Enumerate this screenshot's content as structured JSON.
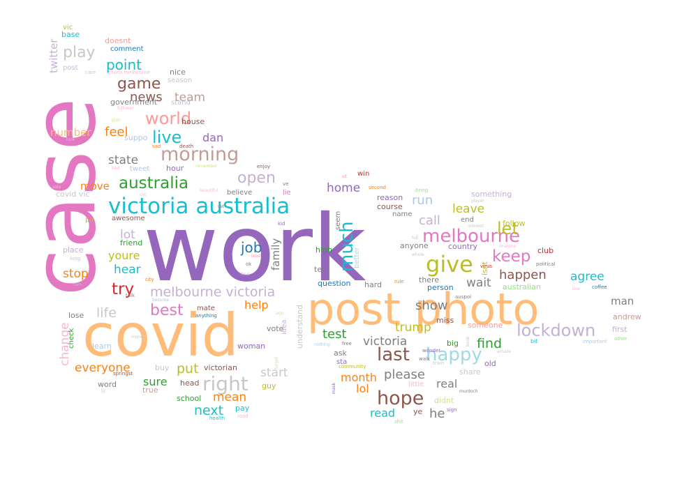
{
  "palette": {
    "pink": "#e377c2",
    "purple": "#9467bd",
    "orange": "#ffbb78",
    "teal": "#17becf",
    "green": "#2ca02c",
    "brown": "#8c564b",
    "tan": "#c49c94",
    "grey": "#7f7f7f",
    "lightgrey": "#c7c7c7",
    "darkorange": "#ff7f0e",
    "red": "#d62728",
    "olive": "#bcbd22",
    "lightpurple": "#c5b0d5",
    "lightpink": "#f7b6d2",
    "lightblue": "#9edae5",
    "salmon": "#ff9896",
    "lightgreen": "#98df8a",
    "blue": "#1f77b4",
    "skyblue": "#aec7e8",
    "lightolive": "#dbdb8d"
  },
  "words": [
    {
      "id": "w-work",
      "text": "work",
      "color": "purple"
    },
    {
      "id": "w-case",
      "text": "case",
      "color": "pink"
    },
    {
      "id": "w-covid",
      "text": "covid",
      "color": "orange"
    },
    {
      "id": "w-post-photo",
      "text": "post photo",
      "color": "orange"
    },
    {
      "id": "w-victoria-australia",
      "text": "victoria australia",
      "color": "teal"
    },
    {
      "id": "w-australia",
      "text": "australia",
      "color": "green"
    },
    {
      "id": "w-morning",
      "text": "morning",
      "color": "tan"
    },
    {
      "id": "w-world",
      "text": "world",
      "color": "salmon"
    },
    {
      "id": "w-live",
      "text": "live",
      "color": "teal"
    },
    {
      "id": "w-game",
      "text": "game",
      "color": "brown"
    },
    {
      "id": "w-play",
      "text": "play",
      "color": "lightgrey"
    },
    {
      "id": "w-point",
      "text": "point",
      "color": "teal"
    },
    {
      "id": "w-news",
      "text": "news",
      "color": "brown"
    },
    {
      "id": "w-team",
      "text": "team",
      "color": "tan"
    },
    {
      "id": "w-feel",
      "text": "feel",
      "color": "darkorange"
    },
    {
      "id": "w-dan",
      "text": "dan",
      "color": "purple"
    },
    {
      "id": "w-number",
      "text": "number",
      "color": "orange"
    },
    {
      "id": "w-state",
      "text": "state",
      "color": "grey"
    },
    {
      "id": "w-open",
      "text": "open",
      "color": "lightpurple"
    },
    {
      "id": "w-melbourne",
      "text": "melbourne",
      "color": "pink"
    },
    {
      "id": "w-let",
      "text": "let",
      "color": "olive"
    },
    {
      "id": "w-give",
      "text": "give",
      "color": "olive"
    },
    {
      "id": "w-keep",
      "text": "keep",
      "color": "pink"
    },
    {
      "id": "w-much",
      "text": "much",
      "color": "teal"
    },
    {
      "id": "w-job",
      "text": "job",
      "color": "blue"
    },
    {
      "id": "w-family",
      "text": "family",
      "color": "grey"
    },
    {
      "id": "w-try",
      "text": "try",
      "color": "red"
    },
    {
      "id": "w-best",
      "text": "best",
      "color": "pink"
    },
    {
      "id": "w-melbourne-victoria",
      "text": "melbourne victoria",
      "color": "lightpurple"
    },
    {
      "id": "w-life",
      "text": "life",
      "color": "lightgrey"
    },
    {
      "id": "w-help",
      "text": "help",
      "color": "darkorange"
    },
    {
      "id": "w-right",
      "text": "right",
      "color": "lightgrey"
    },
    {
      "id": "w-put",
      "text": "put",
      "color": "olive"
    },
    {
      "id": "w-sure",
      "text": "sure",
      "color": "green"
    },
    {
      "id": "w-everyone",
      "text": "everyone",
      "color": "darkorange"
    },
    {
      "id": "w-change",
      "text": "change",
      "color": "lightpink"
    },
    {
      "id": "w-hope",
      "text": "hope",
      "color": "brown"
    },
    {
      "id": "w-last",
      "text": "last",
      "color": "brown"
    },
    {
      "id": "w-happy",
      "text": "happy",
      "color": "lightblue"
    },
    {
      "id": "w-lockdown",
      "text": "lockdown",
      "color": "lightpurple"
    },
    {
      "id": "w-find",
      "text": "find",
      "color": "green"
    },
    {
      "id": "w-show",
      "text": "show",
      "color": "grey"
    },
    {
      "id": "w-trump",
      "text": "trump",
      "color": "olive"
    },
    {
      "id": "w-victoria",
      "text": "victoria",
      "color": "grey"
    },
    {
      "id": "w-test",
      "text": "test",
      "color": "green"
    },
    {
      "id": "w-please",
      "text": "please",
      "color": "grey"
    },
    {
      "id": "w-month",
      "text": "month",
      "color": "darkorange"
    },
    {
      "id": "w-real",
      "text": "real",
      "color": "grey"
    },
    {
      "id": "w-he",
      "text": "he",
      "color": "grey"
    },
    {
      "id": "w-read",
      "text": "read",
      "color": "teal"
    },
    {
      "id": "w-lol",
      "text": "lol",
      "color": "darkorange"
    },
    {
      "id": "w-next",
      "text": "next",
      "color": "teal"
    },
    {
      "id": "w-mean",
      "text": "mean",
      "color": "darkorange"
    },
    {
      "id": "w-start",
      "text": "start",
      "color": "lightgrey"
    },
    {
      "id": "w-happen",
      "text": "happen",
      "color": "brown"
    },
    {
      "id": "w-agree",
      "text": "agree",
      "color": "teal"
    },
    {
      "id": "w-call",
      "text": "call",
      "color": "lightpurple"
    },
    {
      "id": "w-run",
      "text": "run",
      "color": "skyblue"
    },
    {
      "id": "w-leave",
      "text": "leave",
      "color": "olive"
    },
    {
      "id": "w-wait",
      "text": "wait",
      "color": "grey"
    },
    {
      "id": "w-home",
      "text": "home",
      "color": "purple"
    },
    {
      "id": "w-man",
      "text": "man",
      "color": "grey"
    },
    {
      "id": "w-stop",
      "text": "stop",
      "color": "darkorange"
    },
    {
      "id": "w-hear",
      "text": "hear",
      "color": "teal"
    },
    {
      "id": "w-youre",
      "text": "youre",
      "color": "olive"
    },
    {
      "id": "w-lot",
      "text": "lot",
      "color": "lightpurple"
    },
    {
      "id": "w-move",
      "text": "move",
      "color": "darkorange"
    },
    {
      "id": "w-twitter",
      "text": "twitter",
      "color": "lightpurple"
    },
    {
      "id": "w-base",
      "text": "base",
      "color": "teal"
    },
    {
      "id": "w-vic",
      "text": "vic",
      "color": "olive"
    },
    {
      "id": "w-doesnt",
      "text": "doesnt",
      "color": "salmon"
    },
    {
      "id": "w-comment",
      "text": "comment",
      "color": "blue"
    },
    {
      "id": "w-post",
      "text": "post",
      "color": "skyblue"
    },
    {
      "id": "w-nice",
      "text": "nice",
      "color": "grey"
    },
    {
      "id": "w-season",
      "text": "season",
      "color": "lightgrey"
    },
    {
      "id": "w-government",
      "text": "government",
      "color": "grey"
    },
    {
      "id": "w-stand",
      "text": "stand",
      "color": "skyblue"
    },
    {
      "id": "w-house",
      "text": "house",
      "color": "brown"
    },
    {
      "id": "w-suppo",
      "text": "suppo",
      "color": "skyblue"
    },
    {
      "id": "w-tweet",
      "text": "tweet",
      "color": "skyblue"
    },
    {
      "id": "w-hour",
      "text": "hour",
      "color": "purple"
    },
    {
      "id": "w-believe",
      "text": "believe",
      "color": "grey"
    },
    {
      "id": "w-lie",
      "text": "lie",
      "color": "pink"
    },
    {
      "id": "w-awesome",
      "text": "awesome",
      "color": "brown"
    },
    {
      "id": "w-friend",
      "text": "friend",
      "color": "green"
    },
    {
      "id": "w-place",
      "text": "place",
      "color": "lightpurple"
    },
    {
      "id": "w-covid-vic",
      "text": "covid vic",
      "color": "lightgrey"
    },
    {
      "id": "w-win",
      "text": "win",
      "color": "red"
    },
    {
      "id": "w-reason",
      "text": "reason",
      "color": "purple"
    },
    {
      "id": "w-course",
      "text": "course",
      "color": "brown"
    },
    {
      "id": "w-name",
      "text": "name",
      "color": "grey"
    },
    {
      "id": "w-seem",
      "text": "seem",
      "color": "grey"
    },
    {
      "id": "w-end",
      "text": "end",
      "color": "grey"
    },
    {
      "id": "w-follow",
      "text": "follow",
      "color": "olive"
    },
    {
      "id": "w-something",
      "text": "something",
      "color": "lightpurple"
    },
    {
      "id": "w-country",
      "text": "country",
      "color": "purple"
    },
    {
      "id": "w-club",
      "text": "club",
      "color": "red"
    },
    {
      "id": "w-anyone",
      "text": "anyone",
      "color": "grey"
    },
    {
      "id": "w-high",
      "text": "high",
      "color": "green"
    },
    {
      "id": "w-tell",
      "text": "tell",
      "color": "grey"
    },
    {
      "id": "w-question",
      "text": "question",
      "color": "blue"
    },
    {
      "id": "w-hard",
      "text": "hard",
      "color": "grey"
    },
    {
      "id": "w-there",
      "text": "there",
      "color": "grey"
    },
    {
      "id": "w-person",
      "text": "person",
      "color": "blue"
    },
    {
      "id": "w-isnt",
      "text": "isnt",
      "color": "olive"
    },
    {
      "id": "w-better",
      "text": "better",
      "color": "lightblue"
    },
    {
      "id": "w-australian",
      "text": "australian",
      "color": "lightgreen"
    },
    {
      "id": "w-miss",
      "text": "miss",
      "color": "brown"
    },
    {
      "id": "w-someone",
      "text": "someone",
      "color": "salmon"
    },
    {
      "id": "w-first",
      "text": "first",
      "color": "lightpurple"
    },
    {
      "id": "w-andrew",
      "text": "andrew",
      "color": "tan"
    },
    {
      "id": "w-big",
      "text": "big",
      "color": "green"
    },
    {
      "id": "w-old",
      "text": "old",
      "color": "purple"
    },
    {
      "id": "w-share",
      "text": "share",
      "color": "lightgrey"
    },
    {
      "id": "w-ask",
      "text": "ask",
      "color": "grey"
    },
    {
      "id": "w-sta",
      "text": "sta",
      "color": "purple"
    },
    {
      "id": "w-little",
      "text": "little",
      "color": "lightpink"
    },
    {
      "id": "w-didnt",
      "text": "didnt",
      "color": "lightolive"
    },
    {
      "id": "w-ye",
      "text": "ye",
      "color": "brown"
    },
    {
      "id": "w-understand",
      "text": "understand",
      "color": "lightgrey"
    },
    {
      "id": "w-idea",
      "text": "idea",
      "color": "lightpurple"
    },
    {
      "id": "w-vote",
      "text": "vote",
      "color": "grey"
    },
    {
      "id": "w-woman",
      "text": "woman",
      "color": "purple"
    },
    {
      "id": "w-victorian",
      "text": "victorian",
      "color": "brown"
    },
    {
      "id": "w-buy",
      "text": "buy",
      "color": "lightgrey"
    },
    {
      "id": "w-guy",
      "text": "guy",
      "color": "olive"
    },
    {
      "id": "w-head",
      "text": "head",
      "color": "brown"
    },
    {
      "id": "w-school",
      "text": "school",
      "color": "green"
    },
    {
      "id": "w-pay",
      "text": "pay",
      "color": "teal"
    },
    {
      "id": "w-mate",
      "text": "mate",
      "color": "brown"
    },
    {
      "id": "w-learn",
      "text": "learn",
      "color": "skyblue"
    },
    {
      "id": "w-lose",
      "text": "lose",
      "color": "grey"
    },
    {
      "id": "w-check",
      "text": "check",
      "color": "green"
    },
    {
      "id": "w-word",
      "text": "word",
      "color": "grey"
    },
    {
      "id": "w-true",
      "text": "true",
      "color": "tan"
    },
    {
      "id": "w-coffee",
      "text": "coffee",
      "color": "blue"
    },
    {
      "id": "w-bit",
      "text": "bit",
      "color": "teal"
    },
    {
      "id": "w-important",
      "text": "important",
      "color": "skyblue"
    },
    {
      "id": "w-other",
      "text": "other",
      "color": "lightgreen"
    },
    {
      "id": "w-political",
      "text": "political",
      "color": "grey"
    },
    {
      "id": "w-virus",
      "text": "virus",
      "color": "red"
    },
    {
      "id": "w-auspol",
      "text": "auspol",
      "color": "grey"
    },
    {
      "id": "w-wonder",
      "text": "wonder",
      "color": "purple"
    },
    {
      "id": "w-walk",
      "text": "walk",
      "color": "grey"
    },
    {
      "id": "w-train",
      "text": "train",
      "color": "lightgrey"
    },
    {
      "id": "w-free",
      "text": "free",
      "color": "grey"
    },
    {
      "id": "w-community",
      "text": "community",
      "color": "olive"
    },
    {
      "id": "w-health",
      "text": "health",
      "color": "teal"
    },
    {
      "id": "w-road",
      "text": "road",
      "color": "lightpink"
    },
    {
      "id": "w-shit",
      "text": "shit",
      "color": "lightgreen"
    },
    {
      "id": "w-sign",
      "text": "sign",
      "color": "purple"
    },
    {
      "id": "w-murdoch",
      "text": "murdoch",
      "color": "grey"
    },
    {
      "id": "w-springst",
      "text": "springst",
      "color": "brown"
    },
    {
      "id": "w-rule",
      "text": "rule",
      "color": "darkorange"
    },
    {
      "id": "w-care",
      "text": "care",
      "color": "lightgrey"
    },
    {
      "id": "w-photo-melbourne",
      "text": "photo melbourne",
      "color": "lightpink"
    },
    {
      "id": "w-follower",
      "text": "follower",
      "color": "lightpink"
    },
    {
      "id": "w-plan",
      "text": "plan",
      "color": "lightolive"
    },
    {
      "id": "w-sad",
      "text": "sad",
      "color": "darkorange"
    },
    {
      "id": "w-death",
      "text": "death",
      "color": "brown"
    },
    {
      "id": "w-luck",
      "text": "luck",
      "color": "lightpink"
    },
    {
      "id": "w-enjoy",
      "text": "enjoy",
      "color": "brown"
    },
    {
      "id": "w-remember",
      "text": "remember",
      "color": "lightolive"
    },
    {
      "id": "w-bad",
      "text": "bad",
      "color": "lightpink"
    },
    {
      "id": "w-side",
      "text": "side",
      "color": "lightpink"
    },
    {
      "id": "w-cat",
      "text": "cat",
      "color": "lightpink"
    },
    {
      "id": "w-set",
      "text": "set",
      "color": "grey"
    },
    {
      "id": "w-beautiful",
      "text": "beautiful",
      "color": "lightpink"
    },
    {
      "id": "w-second",
      "text": "second",
      "color": "darkorange"
    },
    {
      "id": "w-bring",
      "text": "bring",
      "color": "lightgreen"
    },
    {
      "id": "w-player",
      "text": "player",
      "color": "lightgrey"
    },
    {
      "id": "w-interest",
      "text": "interest",
      "color": "lightgrey"
    },
    {
      "id": "w-imagine",
      "text": "imagine",
      "color": "lightpink"
    },
    {
      "id": "w-kid",
      "text": "kid",
      "color": "purple"
    },
    {
      "id": "w-full",
      "text": "full",
      "color": "lightgrey"
    },
    {
      "id": "w-whole",
      "text": "whole",
      "color": "lightgrey"
    },
    {
      "id": "w-least",
      "text": "least",
      "color": "salmon"
    },
    {
      "id": "w-ok",
      "text": "ok",
      "color": "grey"
    },
    {
      "id": "w-final",
      "text": "final",
      "color": "lightpink"
    },
    {
      "id": "w-city",
      "text": "city",
      "color": "darkorange"
    },
    {
      "id": "w-talk",
      "text": "talk",
      "color": "grey"
    },
    {
      "id": "w-become",
      "text": "become",
      "color": "skyblue"
    },
    {
      "id": "w-anything",
      "text": "anything",
      "color": "blue"
    },
    {
      "id": "w-money",
      "text": "money",
      "color": "lightgrey"
    },
    {
      "id": "w-listen",
      "text": "listen",
      "color": "lightgrey"
    },
    {
      "id": "w-nothing",
      "text": "nothing",
      "color": "skyblue"
    },
    {
      "id": "w-forget",
      "text": "forget",
      "color": "lightolive"
    },
    {
      "id": "w-mask",
      "text": "mask",
      "color": "purple"
    },
    {
      "id": "w-book",
      "text": "book",
      "color": "lightgrey"
    },
    {
      "id": "w-long",
      "text": "long",
      "color": "lightgrey"
    },
    {
      "id": "w-turn",
      "text": "turn",
      "color": "lightgrey"
    },
    {
      "id": "w-pa",
      "text": "pa",
      "color": "olive"
    },
    {
      "id": "w-ve",
      "text": "ve",
      "color": "grey"
    },
    {
      "id": "w-sit",
      "text": "sit",
      "color": "salmon"
    },
    {
      "id": "w-ago",
      "text": "ago",
      "color": "lightolive"
    },
    {
      "id": "w-line",
      "text": "line",
      "color": "lightpink"
    },
    {
      "id": "w-amaze",
      "text": "amaze",
      "color": "lightgrey"
    },
    {
      "id": "w-lic",
      "text": "lic",
      "color": "lightgrey"
    }
  ]
}
